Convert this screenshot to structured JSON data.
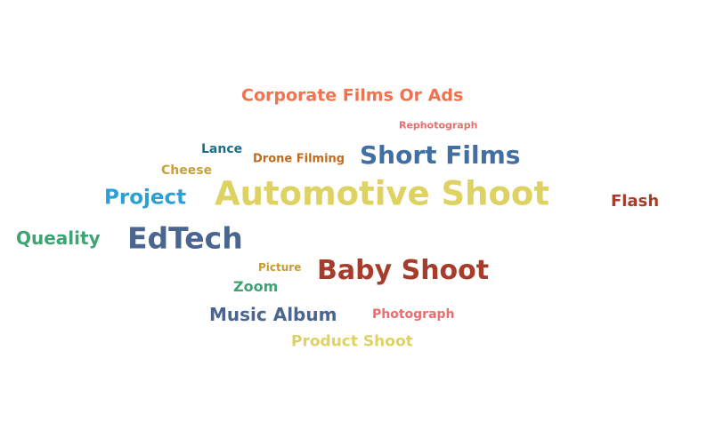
{
  "words": [
    {
      "id": "corporate-films-or-ads",
      "text": "Corporate Films Or Ads",
      "color": "#EF7350"
    },
    {
      "id": "rephotograph",
      "text": "Rephotograph",
      "color": "#EE6B6E"
    },
    {
      "id": "lance",
      "text": "Lance",
      "color": "#1C6E8C"
    },
    {
      "id": "drone-filming",
      "text": "Drone Filming",
      "color": "#BF6B1D"
    },
    {
      "id": "short-films",
      "text": "Short Films",
      "color": "#416FA3"
    },
    {
      "id": "cheese",
      "text": "Cheese",
      "color": "#C9A03A"
    },
    {
      "id": "project",
      "text": "Project",
      "color": "#2C9FD6"
    },
    {
      "id": "automotive-shoot",
      "text": "Automotive Shoot",
      "color": "#DDD262"
    },
    {
      "id": "flash",
      "text": "Flash",
      "color": "#A63D2C"
    },
    {
      "id": "queality",
      "text": "Queality",
      "color": "#3FA374"
    },
    {
      "id": "edtech",
      "text": "EdTech",
      "color": "#4A6690"
    },
    {
      "id": "picture",
      "text": "Picture",
      "color": "#C99A2E"
    },
    {
      "id": "baby-shoot",
      "text": "Baby Shoot",
      "color": "#A63D2C"
    },
    {
      "id": "zoom",
      "text": "Zoom",
      "color": "#3FA374"
    },
    {
      "id": "music-album",
      "text": "Music Album",
      "color": "#4A6690"
    },
    {
      "id": "photograph",
      "text": "Photograph",
      "color": "#EE6B6E"
    },
    {
      "id": "product-shoot",
      "text": "Product Shoot",
      "color": "#DDD262"
    }
  ]
}
